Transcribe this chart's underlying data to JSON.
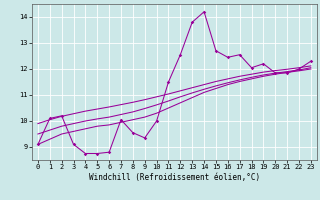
{
  "xlabel": "Windchill (Refroidissement éolien,°C)",
  "background_color": "#cce8e8",
  "grid_color": "#ffffff",
  "line_color": "#990099",
  "xlim": [
    -0.5,
    23.5
  ],
  "ylim": [
    8.5,
    14.5
  ],
  "yticks": [
    9,
    10,
    11,
    12,
    13,
    14
  ],
  "xticks": [
    0,
    1,
    2,
    3,
    4,
    5,
    6,
    7,
    8,
    9,
    10,
    11,
    12,
    13,
    14,
    15,
    16,
    17,
    18,
    19,
    20,
    21,
    22,
    23
  ],
  "line1_x": [
    0,
    1,
    2,
    3,
    4,
    5,
    6,
    7,
    8,
    9,
    10,
    11,
    12,
    13,
    14,
    15,
    16,
    17,
    18,
    19,
    20,
    21,
    22,
    23
  ],
  "line1_y": [
    9.1,
    10.1,
    10.2,
    9.1,
    8.75,
    8.75,
    8.8,
    10.05,
    9.55,
    9.35,
    10.0,
    11.5,
    12.55,
    13.8,
    14.2,
    12.7,
    12.45,
    12.55,
    12.05,
    12.2,
    11.85,
    11.85,
    12.0,
    12.3
  ],
  "line2_x": [
    0,
    1,
    2,
    3,
    4,
    5,
    6,
    7,
    8,
    9,
    10,
    11,
    12,
    13,
    14,
    15,
    16,
    17,
    18,
    19,
    20,
    21,
    22,
    23
  ],
  "line2_y": [
    9.1,
    9.3,
    9.5,
    9.6,
    9.7,
    9.8,
    9.85,
    9.95,
    10.05,
    10.15,
    10.3,
    10.5,
    10.7,
    10.9,
    11.1,
    11.25,
    11.4,
    11.52,
    11.62,
    11.72,
    11.8,
    11.87,
    11.93,
    12.0
  ],
  "line3_x": [
    0,
    1,
    2,
    3,
    4,
    5,
    6,
    7,
    8,
    9,
    10,
    11,
    12,
    13,
    14,
    15,
    16,
    17,
    18,
    19,
    20,
    21,
    22,
    23
  ],
  "line3_y": [
    9.5,
    9.65,
    9.8,
    9.9,
    10.0,
    10.08,
    10.15,
    10.25,
    10.35,
    10.48,
    10.62,
    10.77,
    10.93,
    11.08,
    11.22,
    11.35,
    11.47,
    11.58,
    11.68,
    11.77,
    11.84,
    11.9,
    11.96,
    12.05
  ],
  "line4_x": [
    0,
    1,
    2,
    3,
    4,
    5,
    6,
    7,
    8,
    9,
    10,
    11,
    12,
    13,
    14,
    15,
    16,
    17,
    18,
    19,
    20,
    21,
    22,
    23
  ],
  "line4_y": [
    9.9,
    10.05,
    10.18,
    10.28,
    10.38,
    10.46,
    10.54,
    10.63,
    10.72,
    10.82,
    10.93,
    11.04,
    11.16,
    11.28,
    11.4,
    11.52,
    11.62,
    11.72,
    11.8,
    11.88,
    11.94,
    11.99,
    12.05,
    12.12
  ]
}
